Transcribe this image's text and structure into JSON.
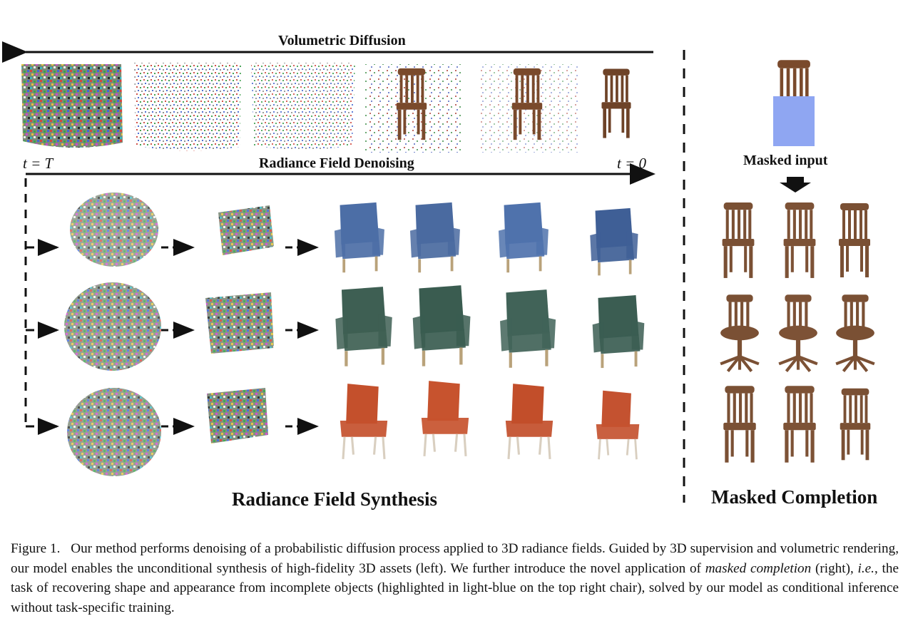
{
  "figure": {
    "diffusion_label": "Volumetric Diffusion",
    "denoising_label": "Radiance Field Denoising",
    "t_start": "t = T",
    "t_end": "t = 0",
    "synthesis_title": "Radiance Field Synthesis",
    "masked_input_label": "Masked input",
    "completion_title": "Masked Completion",
    "chair_colors": {
      "wood": "#7a4a2c",
      "masked_blue": "#8fa6f2",
      "blue": "#4c6ea6",
      "green": "#3e5f53",
      "orange": "#c4502c"
    },
    "stage_icons": [
      "noise-cube",
      "noisy-chair",
      "clean-chair"
    ]
  },
  "caption": {
    "prefix": "Figure 1.",
    "part1": "Our method performs denoising of a probabilistic diffusion process applied to 3D radiance fields. Guided by 3D supervision and volumetric rendering, our model enables the unconditional synthesis of high-fidelity 3D assets (left). We further introduce the novel application of ",
    "emph1": "masked completion",
    "part2": " (right), ",
    "emph2": "i.e.",
    "part3": ", the task of recovering shape and appearance from incomplete objects (highlighted in light-blue on the top right chair), solved by our model as conditional inference without task-specific training."
  }
}
